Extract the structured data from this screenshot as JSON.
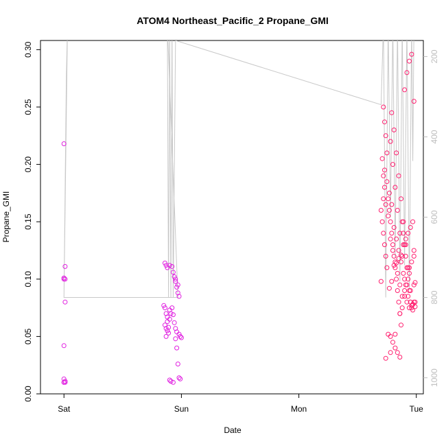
{
  "chart_data": {
    "type": "scatter",
    "title": "ATOM4 Northeast_Pacific_2 Propane_GMI",
    "xlabel": "Date",
    "ylabel": "Propane_GMI",
    "x_ticks": [
      "Sat",
      "Sun",
      "Mon",
      "Tue"
    ],
    "xlim": [
      -0.2,
      3.06
    ],
    "ylim": [
      0,
      0.308
    ],
    "y_ticks": [
      0.0,
      0.05,
      0.1,
      0.15,
      0.2,
      0.25,
      0.3
    ],
    "y_tick_labels": [
      "0.00",
      "0.05",
      "0.10",
      "0.15",
      "0.20",
      "0.25",
      "0.30"
    ],
    "y2_ticks": [
      200,
      400,
      600,
      800,
      1000
    ],
    "y2_tick_labels": [
      "200",
      "400",
      "600",
      "800",
      "1000"
    ],
    "y2lim": [
      1040,
      160
    ],
    "grid": false,
    "marker": "open-circle",
    "pressure_trace": {
      "color": "#c8c8c8",
      "points": [
        [
          0.0,
          800
        ],
        [
          0.0,
          800
        ],
        [
          0.02,
          250
        ],
        [
          0.03,
          120
        ],
        [
          0.0,
          800
        ],
        [
          0.97,
          800
        ],
        [
          0.88,
          120
        ],
        [
          0.89,
          800
        ],
        [
          0.9,
          120
        ],
        [
          0.91,
          800
        ],
        [
          0.92,
          120
        ],
        [
          0.93,
          800
        ],
        [
          0.95,
          160
        ],
        [
          2.7,
          320
        ],
        [
          2.72,
          120
        ],
        [
          2.74,
          800
        ],
        [
          2.76,
          120
        ],
        [
          2.78,
          600
        ],
        [
          2.8,
          120
        ],
        [
          2.82,
          700
        ],
        [
          2.84,
          120
        ],
        [
          2.86,
          760
        ],
        [
          2.88,
          120
        ],
        [
          2.9,
          720
        ],
        [
          2.92,
          120
        ],
        [
          2.94,
          780
        ],
        [
          2.96,
          120
        ],
        [
          2.97,
          460
        ],
        [
          2.98,
          120
        ]
      ]
    },
    "series": [
      {
        "color": "#e020e0",
        "x": [
          0.0,
          0.01,
          0.0,
          0.01,
          0.0,
          0.01,
          0.0,
          0.0,
          0.01,
          0.0,
          0.0,
          0.01,
          0.85,
          0.86,
          0.87,
          0.88,
          0.86,
          0.87,
          0.88,
          0.89,
          0.87,
          0.9,
          0.91,
          0.88,
          0.89,
          0.9,
          0.92,
          0.93,
          0.94,
          0.95,
          0.96,
          0.86,
          0.87,
          0.88,
          0.9,
          0.92,
          0.93,
          0.94,
          0.95,
          0.96,
          0.97,
          0.98,
          0.99,
          1.0,
          0.95,
          0.96,
          0.97,
          0.98,
          0.99,
          0.9,
          0.91,
          0.93,
          0.95,
          0.97,
          0.98
        ],
        "y": [
          0.218,
          0.111,
          0.101,
          0.1,
          0.1,
          0.08,
          0.042,
          0.013,
          0.011,
          0.01,
          0.01,
          0.01,
          0.077,
          0.075,
          0.07,
          0.067,
          0.06,
          0.057,
          0.055,
          0.053,
          0.05,
          0.073,
          0.07,
          0.063,
          0.058,
          0.065,
          0.075,
          0.069,
          0.062,
          0.057,
          0.054,
          0.114,
          0.112,
          0.11,
          0.112,
          0.111,
          0.106,
          0.102,
          0.098,
          0.093,
          0.088,
          0.052,
          0.05,
          0.049,
          0.048,
          0.04,
          0.026,
          0.014,
          0.013,
          0.012,
          0.011,
          0.01,
          0.1,
          0.095,
          0.085
        ]
      },
      {
        "color": "#ff1e6e",
        "x": [
          2.7,
          2.71,
          2.72,
          2.73,
          2.74,
          2.75,
          2.72,
          2.73,
          2.74,
          2.75,
          2.72,
          2.73,
          2.76,
          2.77,
          2.78,
          2.79,
          2.8,
          2.81,
          2.82,
          2.83,
          2.84,
          2.85,
          2.86,
          2.87,
          2.88,
          2.89,
          2.9,
          2.91,
          2.92,
          2.93,
          2.94,
          2.95,
          2.96,
          2.97,
          2.98,
          2.99,
          2.78,
          2.8,
          2.82,
          2.84,
          2.86,
          2.88,
          2.9,
          2.92,
          2.94,
          2.96,
          2.98,
          2.79,
          2.81,
          2.83,
          2.85,
          2.87,
          2.89,
          2.91,
          2.93,
          2.95,
          2.97,
          2.99,
          2.76,
          2.78,
          2.8,
          2.82,
          2.84,
          2.86,
          2.88,
          2.9,
          2.92,
          2.94,
          2.96,
          2.98,
          2.77,
          2.79,
          2.81,
          2.83,
          2.85,
          2.87,
          2.89,
          2.91,
          2.93,
          2.95,
          2.97,
          2.7,
          2.72,
          2.74,
          2.76,
          2.78,
          2.8,
          2.82,
          2.84,
          2.86,
          2.88,
          2.9,
          2.92,
          2.94,
          2.96,
          2.98,
          2.71,
          2.73,
          2.75,
          2.77,
          2.79,
          2.81,
          2.83,
          2.85,
          2.87,
          2.89,
          2.91,
          2.93,
          2.95,
          2.97,
          2.99,
          2.74,
          2.78,
          2.82,
          2.86,
          2.9,
          2.94,
          2.98
        ],
        "y": [
          0.16,
          0.15,
          0.14,
          0.13,
          0.12,
          0.11,
          0.25,
          0.237,
          0.225,
          0.21,
          0.19,
          0.18,
          0.17,
          0.16,
          0.15,
          0.14,
          0.13,
          0.12,
          0.11,
          0.1,
          0.09,
          0.08,
          0.07,
          0.06,
          0.15,
          0.14,
          0.13,
          0.12,
          0.11,
          0.1,
          0.09,
          0.08,
          0.075,
          0.078,
          0.08,
          0.097,
          0.22,
          0.2,
          0.18,
          0.16,
          0.14,
          0.12,
          0.1,
          0.08,
          0.075,
          0.077,
          0.095,
          0.245,
          0.23,
          0.21,
          0.19,
          0.17,
          0.15,
          0.13,
          0.11,
          0.09,
          0.073,
          0.08,
          0.052,
          0.05,
          0.045,
          0.04,
          0.036,
          0.032,
          0.075,
          0.085,
          0.095,
          0.105,
          0.115,
          0.125,
          0.092,
          0.098,
          0.112,
          0.114,
          0.118,
          0.121,
          0.13,
          0.135,
          0.14,
          0.145,
          0.15,
          0.098,
          0.17,
          0.165,
          0.155,
          0.135,
          0.125,
          0.115,
          0.105,
          0.095,
          0.085,
          0.265,
          0.28,
          0.29,
          0.296,
          0.255,
          0.205,
          0.195,
          0.185,
          0.175,
          0.165,
          0.145,
          0.135,
          0.125,
          0.115,
          0.105,
          0.095,
          0.085,
          0.08,
          0.078,
          0.076,
          0.031,
          0.036,
          0.052,
          0.07,
          0.09,
          0.11,
          0.12
        ]
      }
    ]
  }
}
